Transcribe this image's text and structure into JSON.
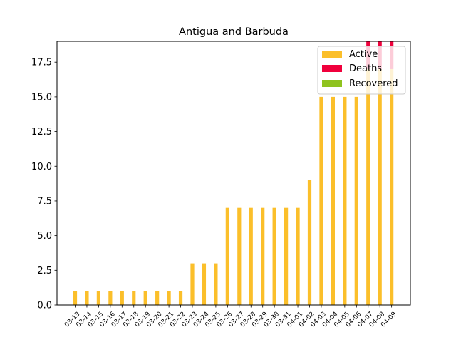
{
  "chart_data": {
    "type": "bar",
    "stacked": true,
    "title": "Antigua and Barbuda",
    "xlabel": "",
    "ylabel": "",
    "categories": [
      "03-13",
      "03-14",
      "03-15",
      "03-16",
      "03-17",
      "03-18",
      "03-19",
      "03-20",
      "03-21",
      "03-22",
      "03-23",
      "03-24",
      "03-25",
      "03-26",
      "03-27",
      "03-28",
      "03-29",
      "03-30",
      "03-31",
      "04-01",
      "04-02",
      "04-03",
      "04-04",
      "04-05",
      "04-06",
      "04-07",
      "04-08",
      "04-09"
    ],
    "series": [
      {
        "name": "Active",
        "color": "#fbbf2a",
        "values": [
          1,
          1,
          1,
          1,
          1,
          1,
          1,
          1,
          1,
          1,
          3,
          3,
          3,
          7,
          7,
          7,
          7,
          7,
          7,
          7,
          9,
          15,
          15,
          15,
          15,
          17,
          17,
          17
        ]
      },
      {
        "name": "Deaths",
        "color": "#f0003c",
        "values": [
          0,
          0,
          0,
          0,
          0,
          0,
          0,
          0,
          0,
          0,
          0,
          0,
          0,
          0,
          0,
          0,
          0,
          0,
          0,
          0,
          0,
          0,
          0,
          0,
          0,
          2,
          2,
          2
        ]
      },
      {
        "name": "Recovered",
        "color": "#8fc31f",
        "values": [
          0,
          0,
          0,
          0,
          0,
          0,
          0,
          0,
          0,
          0,
          0,
          0,
          0,
          0,
          0,
          0,
          0,
          0,
          0,
          0,
          0,
          0,
          0,
          0,
          0,
          0,
          0,
          0
        ]
      }
    ],
    "ylim": [
      0,
      19
    ],
    "yticks": [
      "0.0",
      "2.5",
      "5.0",
      "7.5",
      "10.0",
      "12.5",
      "15.0",
      "17.5"
    ],
    "grid": false,
    "legend_position": "top-right"
  }
}
